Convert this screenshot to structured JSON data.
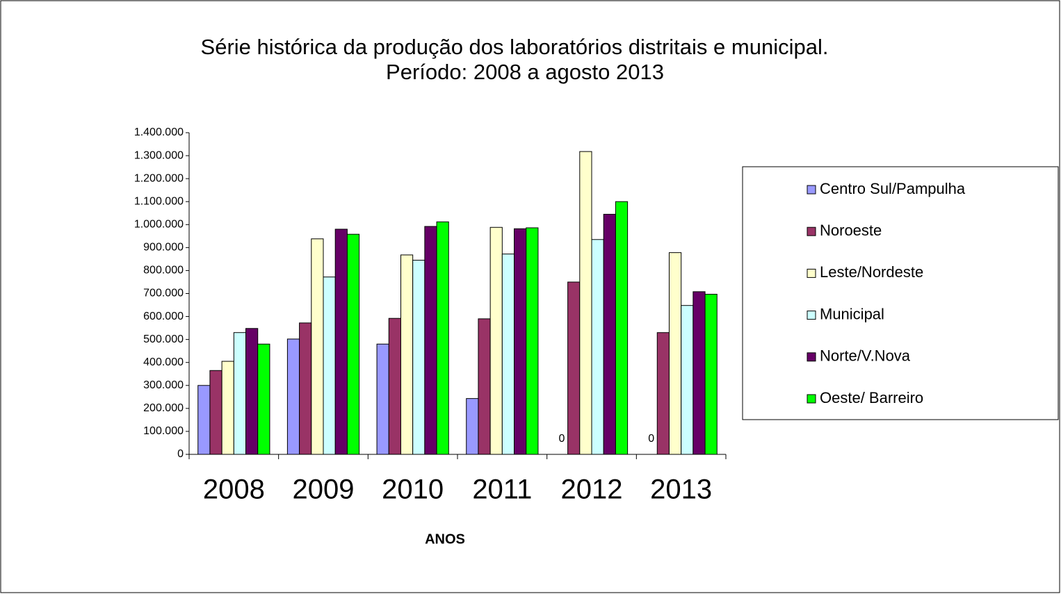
{
  "chart_data": {
    "type": "bar",
    "title": "Série histórica da produção dos laboratórios distritais e municipal.",
    "subtitle": "Período: 2008 a agosto 2013",
    "x_label": "ANOS",
    "categories": [
      "2008",
      "2009",
      "2010",
      "2011",
      "2012",
      "2013"
    ],
    "series": [
      {
        "name": "Centro Sul/Pampulha",
        "color": "#9999ff",
        "values": [
          300000,
          502000,
          480000,
          243000,
          0,
          0
        ],
        "value_labels": [
          null,
          null,
          null,
          null,
          "0",
          "0"
        ]
      },
      {
        "name": "Noroeste",
        "color": "#993366",
        "values": [
          365000,
          572000,
          592000,
          590000,
          750000,
          530000
        ]
      },
      {
        "name": "Leste/Nordeste",
        "color": "#ffffcc",
        "values": [
          405000,
          938000,
          868000,
          988000,
          1318000,
          878000
        ]
      },
      {
        "name": "Municipal",
        "color": "#ccffff",
        "values": [
          530000,
          772000,
          845000,
          872000,
          935000,
          648000
        ]
      },
      {
        "name": "Norte/V.Nova",
        "color": "#660066",
        "values": [
          548000,
          980000,
          992000,
          982000,
          1045000,
          708000
        ]
      },
      {
        "name": "Oeste/ Barreiro",
        "color": "#00ff00",
        "values": [
          480000,
          958000,
          1012000,
          986000,
          1100000,
          697000
        ]
      }
    ],
    "ylim": [
      0,
      1400000
    ],
    "yticks": [
      0,
      {
        "value": 100000,
        "label": "100.000"
      },
      {
        "value": 200000,
        "label": "200.000"
      },
      {
        "value": 300000,
        "label": "300.000"
      },
      {
        "value": 400000,
        "label": "400.000"
      },
      {
        "value": 500000,
        "label": "500.000"
      },
      {
        "value": 600000,
        "label": "600.000"
      },
      {
        "value": 700000,
        "label": "700.000"
      },
      {
        "value": 800000,
        "label": "800.000"
      },
      {
        "value": 900000,
        "label": "900.000"
      },
      {
        "value": 1000000,
        "label": "1.000.000"
      },
      {
        "value": 1100000,
        "label": "1.100.000"
      },
      {
        "value": 1200000,
        "label": "1.200.000"
      },
      {
        "value": 1300000,
        "label": "1.300.000"
      },
      {
        "value": 1400000,
        "label": "1.400.000"
      }
    ],
    "grid": false,
    "legend": "right"
  }
}
